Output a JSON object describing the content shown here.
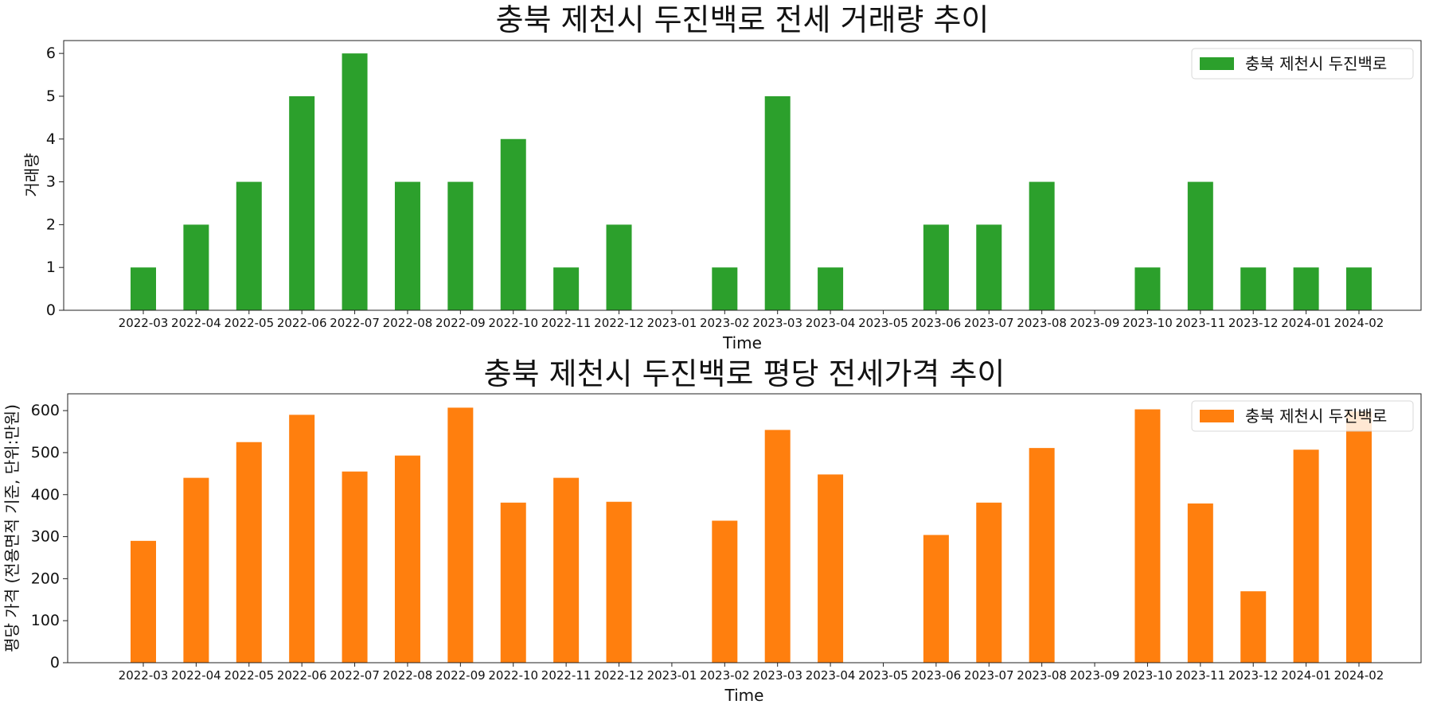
{
  "chart_data": [
    {
      "type": "bar",
      "title": "충북 제천시 두진백로 전세 거래량 추이",
      "xlabel": "Time",
      "ylabel": "거래량",
      "categories": [
        "2022-03",
        "2022-04",
        "2022-05",
        "2022-06",
        "2022-07",
        "2022-08",
        "2022-09",
        "2022-10",
        "2022-11",
        "2022-12",
        "2023-01",
        "2023-02",
        "2023-03",
        "2023-04",
        "2023-05",
        "2023-06",
        "2023-07",
        "2023-08",
        "2023-09",
        "2023-10",
        "2023-11",
        "2023-12",
        "2024-01",
        "2024-02"
      ],
      "series": [
        {
          "name": "충북 제천시 두진백로",
          "color": "#2ca02c",
          "values": [
            1,
            2,
            3,
            5,
            6,
            3,
            3,
            4,
            1,
            2,
            0,
            1,
            5,
            1,
            0,
            2,
            2,
            3,
            0,
            1,
            3,
            1,
            1,
            1
          ]
        }
      ],
      "ylim": [
        0,
        6.3
      ],
      "yticks": [
        0,
        1,
        2,
        3,
        4,
        5,
        6
      ],
      "legend_position": "top-right",
      "grid": false
    },
    {
      "type": "bar",
      "title": "충북 제천시 두진백로 평당 전세가격 추이",
      "xlabel": "Time",
      "ylabel": "평당 가격 (전용면적 기준, 단위:만원)",
      "categories": [
        "2022-03",
        "2022-04",
        "2022-05",
        "2022-06",
        "2022-07",
        "2022-08",
        "2022-09",
        "2022-10",
        "2022-11",
        "2022-12",
        "2023-01",
        "2023-02",
        "2023-03",
        "2023-04",
        "2023-05",
        "2023-06",
        "2023-07",
        "2023-08",
        "2023-09",
        "2023-10",
        "2023-11",
        "2023-12",
        "2024-01",
        "2024-02"
      ],
      "series": [
        {
          "name": "충북 제천시 두진백로",
          "color": "#ff7f0e",
          "values": [
            290,
            440,
            525,
            590,
            455,
            493,
            607,
            381,
            440,
            383,
            0,
            338,
            554,
            448,
            0,
            304,
            381,
            511,
            0,
            603,
            379,
            170,
            507,
            598
          ]
        }
      ],
      "ylim": [
        0,
        640
      ],
      "yticks": [
        0,
        100,
        200,
        300,
        400,
        500,
        600
      ],
      "legend_position": "top-right",
      "grid": false
    }
  ]
}
